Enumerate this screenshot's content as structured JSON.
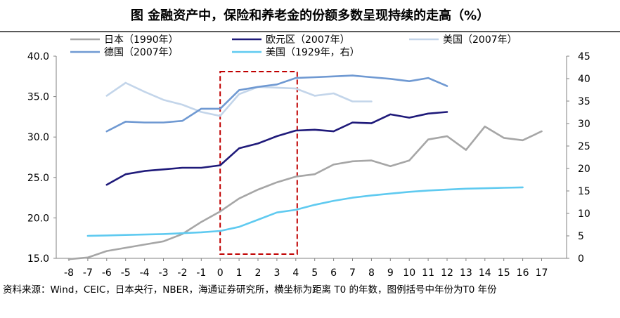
{
  "title": "图  金融资产中，保险和养老金的份额多数呈现持续的走高（%）",
  "source": "资料来源：Wind，CEIC，日本央行，NBER，海通证券研究所，横坐标为距离 T0 的年数，图例括号中年份为T0 年份",
  "colors": {
    "japan": "#a6a6a6",
    "euro": "#1f1a7a",
    "us2007": "#c3d5ea",
    "germany": "#6f99d2",
    "us1929": "#5fcaf0",
    "highlight_box": "#c00000"
  },
  "chart_data": {
    "type": "line",
    "title": "金融资产中，保险和养老金的份额多数呈现持续的走高（%）",
    "x_ticks": [
      -8,
      -7,
      -6,
      -5,
      -4,
      -3,
      -2,
      -1,
      0,
      1,
      2,
      3,
      4,
      5,
      6,
      7,
      8,
      9,
      10,
      11,
      12,
      13,
      14,
      15,
      16,
      17
    ],
    "y_left": {
      "range": [
        15,
        40
      ],
      "ticks": [
        "15.0",
        "20.0",
        "25.0",
        "30.0",
        "35.0",
        "40.0"
      ]
    },
    "y_right": {
      "range": [
        0,
        45
      ],
      "ticks": [
        "0",
        "5",
        "10",
        "15",
        "20",
        "25",
        "30",
        "35",
        "40",
        "45"
      ]
    },
    "highlight_range_x": [
      0,
      4
    ],
    "legend": [
      "日本（1990年）",
      "欧元区（2007年）",
      "美国（2007年）",
      "德国（2007年）",
      "美国（1929年，右）"
    ],
    "series": [
      {
        "name": "日本（1990年）",
        "color_key": "japan",
        "axis": "left",
        "x": [
          -8,
          -7,
          -6,
          -5,
          -4,
          -3,
          -2,
          -1,
          0,
          1,
          2,
          3,
          4,
          5,
          6,
          7,
          8,
          9,
          10,
          11,
          12,
          13,
          14,
          15,
          16,
          17
        ],
        "y": [
          14.9,
          15.1,
          15.9,
          16.3,
          16.7,
          17.1,
          18.0,
          19.5,
          20.8,
          22.4,
          23.5,
          24.4,
          25.1,
          25.4,
          26.6,
          27.0,
          27.1,
          26.4,
          27.1,
          29.7,
          30.1,
          28.4,
          31.3,
          29.9,
          29.6,
          30.7
        ]
      },
      {
        "name": "欧元区（2007年）",
        "color_key": "euro",
        "axis": "left",
        "x": [
          -6,
          -5,
          -4,
          -3,
          -2,
          -1,
          0,
          1,
          2,
          3,
          4,
          5,
          6,
          7,
          8,
          9,
          10,
          11,
          12
        ],
        "y": [
          24.1,
          25.4,
          25.8,
          26.0,
          26.2,
          26.2,
          26.5,
          28.6,
          29.2,
          30.1,
          30.8,
          30.9,
          30.7,
          31.8,
          31.7,
          32.8,
          32.4,
          32.9,
          33.1
        ]
      },
      {
        "name": "美国（2007年）",
        "color_key": "us2007",
        "axis": "left",
        "x": [
          -6,
          -5,
          -4,
          -3,
          -2,
          -1,
          0,
          1,
          2,
          3,
          4,
          5,
          6,
          7,
          8
        ],
        "y": [
          35.1,
          36.7,
          35.6,
          34.6,
          34.0,
          33.1,
          32.6,
          35.3,
          36.2,
          36.1,
          36.0,
          35.1,
          35.4,
          34.4,
          34.4
        ]
      },
      {
        "name": "德国（2007年）",
        "color_key": "germany",
        "axis": "left",
        "x": [
          -6,
          -5,
          -4,
          -3,
          -2,
          -1,
          0,
          1,
          2,
          3,
          4,
          5,
          6,
          7,
          8,
          9,
          10,
          11,
          12
        ],
        "y": [
          30.7,
          31.9,
          31.8,
          31.8,
          32.0,
          33.5,
          33.5,
          35.8,
          36.2,
          36.5,
          37.3,
          37.4,
          37.5,
          37.6,
          37.4,
          37.2,
          36.9,
          37.3,
          36.3
        ]
      },
      {
        "name": "美国（1929年，右）",
        "color_key": "us1929",
        "axis": "right",
        "x": [
          -7,
          -6,
          -5,
          -4,
          -3,
          -2,
          -1,
          0,
          1,
          2,
          3,
          4,
          5,
          6,
          7,
          8,
          9,
          10,
          11,
          12,
          13,
          14,
          15,
          16
        ],
        "y": [
          5.0,
          5.1,
          5.2,
          5.3,
          5.4,
          5.6,
          5.8,
          6.1,
          7.0,
          8.6,
          10.2,
          10.8,
          11.9,
          12.8,
          13.5,
          14.0,
          14.4,
          14.8,
          15.1,
          15.3,
          15.5,
          15.6,
          15.7,
          15.8
        ]
      }
    ]
  }
}
